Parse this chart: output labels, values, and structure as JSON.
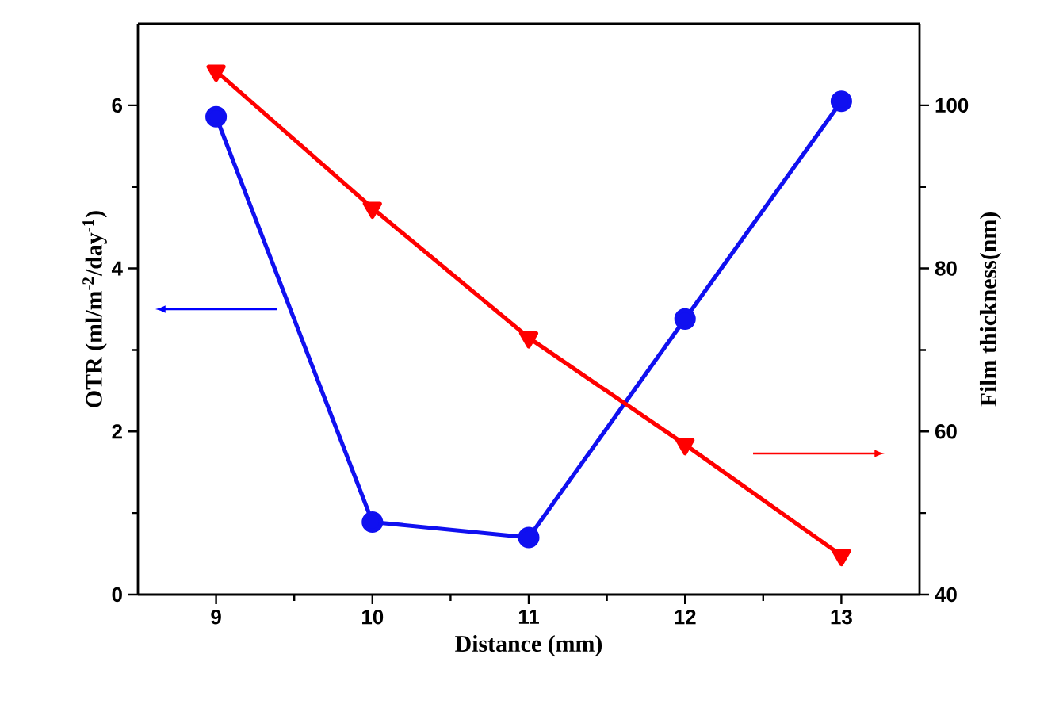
{
  "chart_data": {
    "type": "line",
    "xlabel": "Distance (mm)",
    "ylabel": "OTR (ml/m$^{-2}$/day$^{-1}$)",
    "y2label": "Film thickness(nm)",
    "x": [
      9,
      10,
      11,
      12,
      13
    ],
    "xlim": [
      8.5,
      13.5
    ],
    "xticks": [
      9,
      10,
      11,
      12,
      13
    ],
    "ylim": [
      0,
      7
    ],
    "yticks": [
      0,
      2,
      4,
      6
    ],
    "y2lim": [
      40,
      110
    ],
    "y2ticks": [
      40,
      60,
      80,
      100
    ],
    "series": [
      {
        "color": "#1010f0",
        "marker": "circle",
        "values": [
          5.86,
          0.89,
          0.7,
          3.38,
          6.05
        ]
      },
      {
        "color": "#ff0000",
        "marker": "triangle",
        "axis": "y2",
        "values": [
          104.2,
          87.4,
          71.5,
          58.4,
          44.8
        ]
      }
    ]
  }
}
